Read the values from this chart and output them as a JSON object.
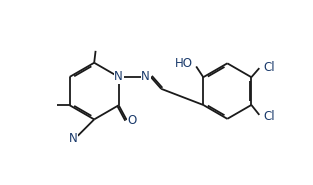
{
  "background_color": "#ffffff",
  "line_color": "#1a1a1a",
  "text_color": "#1a3a6b",
  "bond_lw": 1.3,
  "figsize": [
    3.13,
    1.85
  ],
  "dpi": 100,
  "xlim": [
    -0.5,
    10.5
  ],
  "ylim": [
    0.2,
    5.8
  ]
}
